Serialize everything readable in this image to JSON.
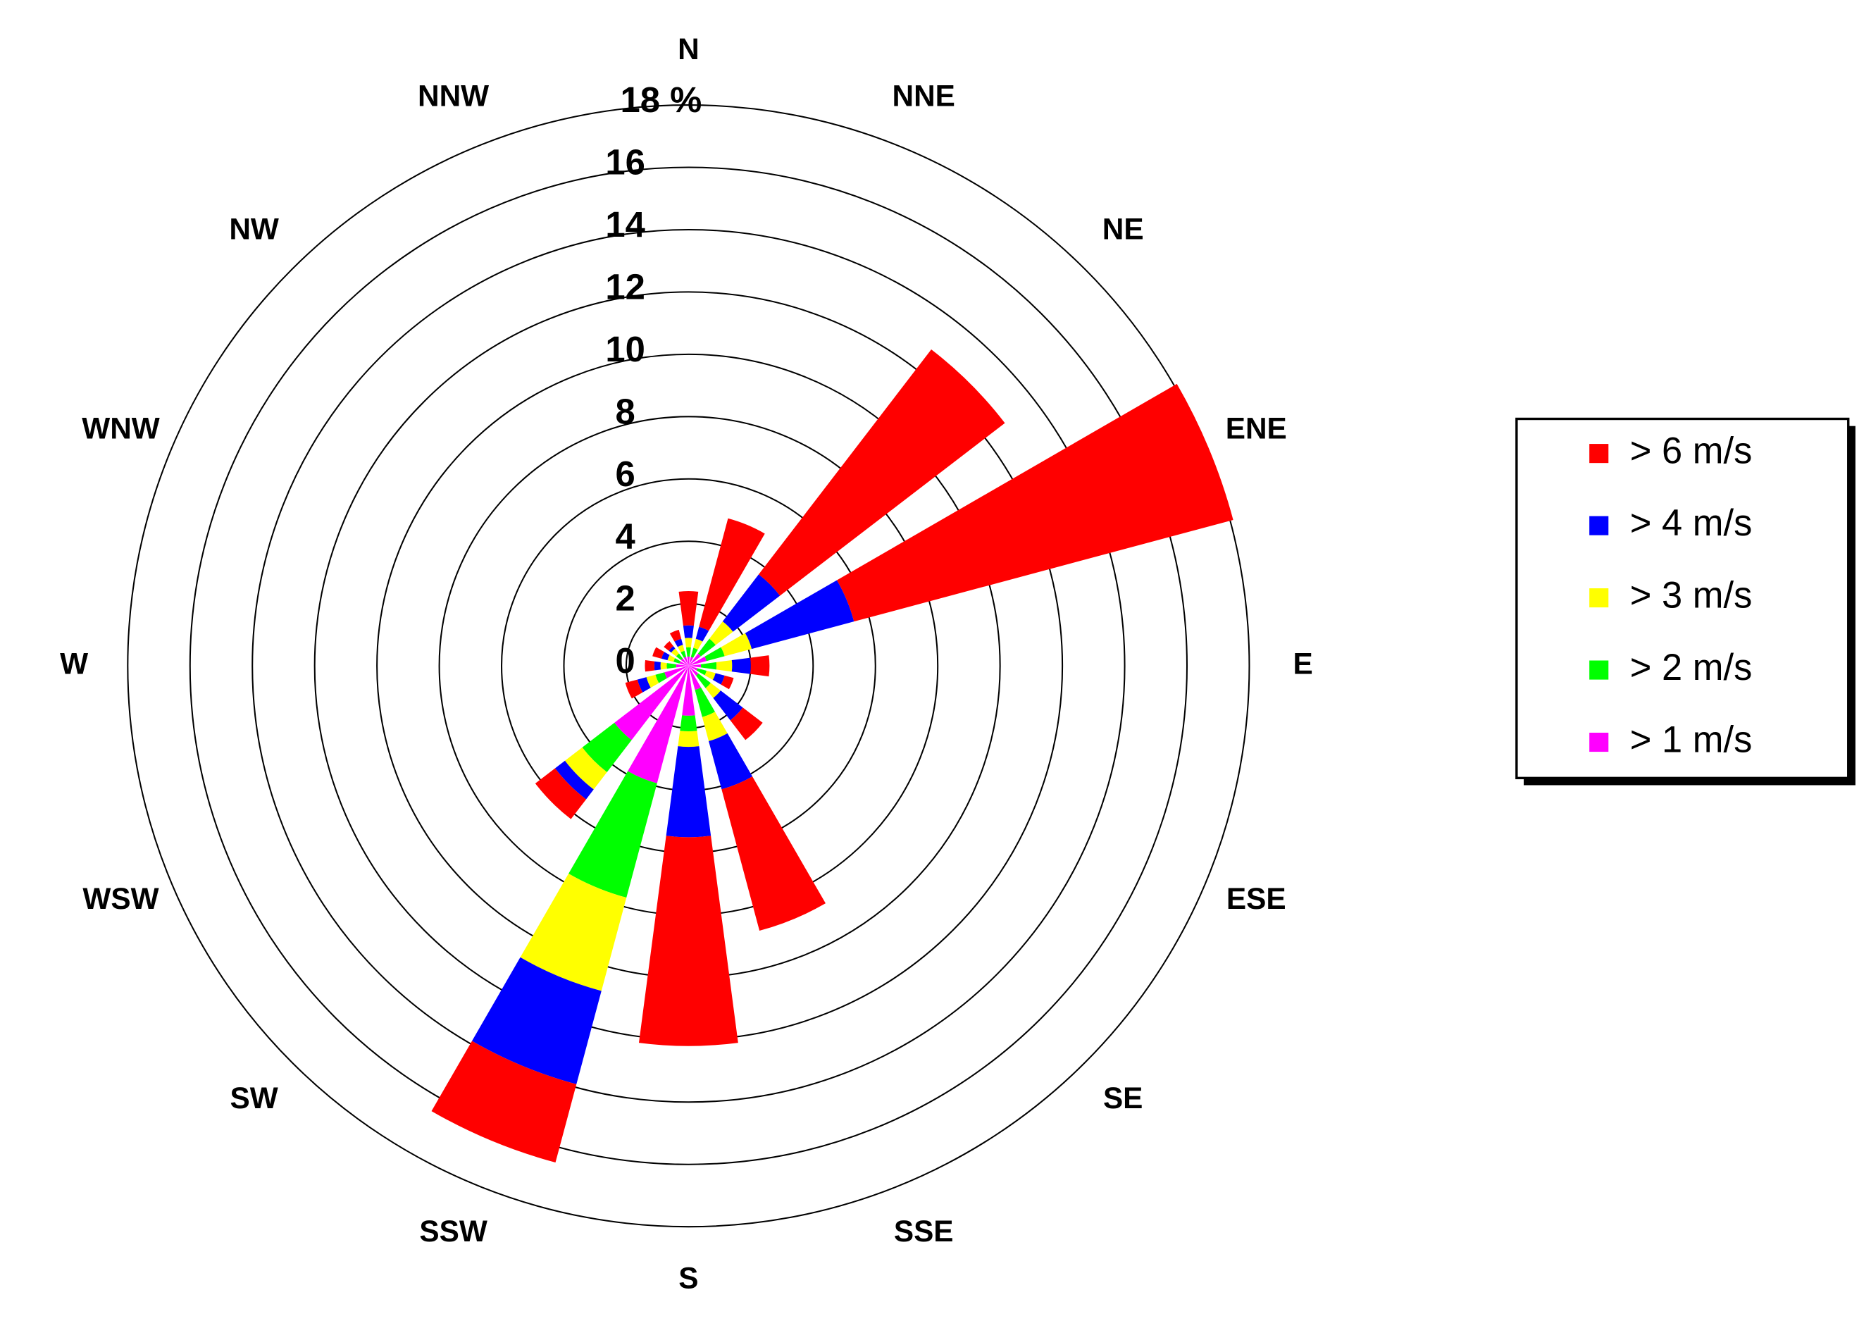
{
  "chart_data": {
    "type": "wind-rose",
    "categories": [
      "N",
      "NNE",
      "NE",
      "ENE",
      "E",
      "ESE",
      "SE",
      "SSE",
      "S",
      "SSW",
      "SW",
      "WSW",
      "W",
      "WNW",
      "NW",
      "NNW"
    ],
    "series": [
      {
        "name": "> 6 m/s",
        "color": "#ff0000",
        "values": [
          1.1,
          3.6,
          9.1,
          12.6,
          0.6,
          0.3,
          0.8,
          4.7,
          6.7,
          2.6,
          0.8,
          0.4,
          0.3,
          0.3,
          0.2,
          0.3
        ]
      },
      {
        "name": "> 4 m/s",
        "color": "#0000ff",
        "values": [
          0.4,
          0.4,
          1.9,
          3.4,
          0.6,
          0.3,
          0.9,
          1.6,
          2.9,
          3.1,
          0.4,
          0.3,
          0.2,
          0.2,
          0.1,
          0.2
        ]
      },
      {
        "name": "> 3 m/s",
        "color": "#ffff00",
        "values": [
          0.3,
          0.3,
          0.7,
          0.9,
          0.5,
          0.3,
          0.4,
          0.8,
          0.5,
          3.1,
          0.7,
          0.3,
          0.2,
          0.2,
          0.2,
          0.2
        ]
      },
      {
        "name": "> 2 m/s",
        "color": "#00ff00",
        "values": [
          0.3,
          0.3,
          0.6,
          0.6,
          0.5,
          0.3,
          0.5,
          0.9,
          0.5,
          3.8,
          1.3,
          0.3,
          0.3,
          0.2,
          0.2,
          0.2
        ]
      },
      {
        "name": "> 1 m/s",
        "color": "#ff00ff",
        "values": [
          0.3,
          0.3,
          0.5,
          0.6,
          0.4,
          0.3,
          0.4,
          0.8,
          1.6,
          3.9,
          3.0,
          0.8,
          0.4,
          0.3,
          0.3,
          0.3
        ]
      }
    ],
    "ylim": [
      0,
      18
    ],
    "yticks": [
      0,
      2,
      4,
      6,
      8,
      10,
      12,
      14,
      16,
      {
        "value": 18,
        "label": "18 %"
      }
    ]
  }
}
